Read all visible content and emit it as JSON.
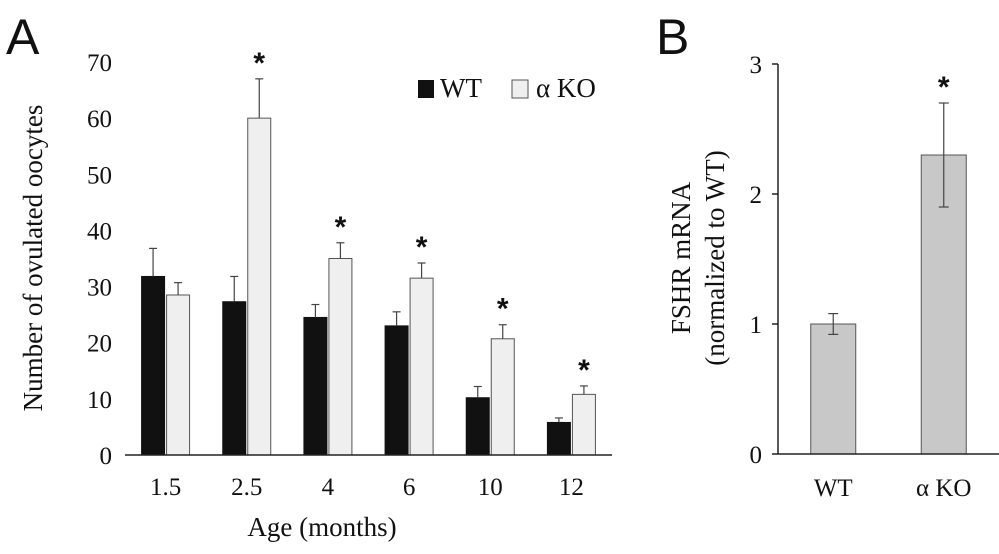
{
  "panels": {
    "a_label": "A",
    "b_label": "B"
  },
  "legend": {
    "wt": "WT",
    "ko": "α KO"
  },
  "significance_mark": "*",
  "colors": {
    "wt": "#111111",
    "ko": "#efefef",
    "b_bar": "#c8c8c8",
    "outline": "#555555"
  },
  "chart_data": [
    {
      "type": "bar",
      "categories": [
        "1.5",
        "2.5",
        "4",
        "6",
        "10",
        "12"
      ],
      "series": [
        {
          "name": "WT",
          "values": [
            31.8,
            27.3,
            24.5,
            23.0,
            10.2,
            5.8
          ],
          "errors": [
            5.0,
            4.5,
            2.3,
            2.5,
            2.0,
            0.8
          ]
        },
        {
          "name": "α KO",
          "values": [
            28.5,
            60.0,
            35.0,
            31.5,
            20.7,
            10.8
          ],
          "errors": [
            2.2,
            7.0,
            2.8,
            2.7,
            2.5,
            1.5
          ]
        }
      ],
      "significant": [
        false,
        true,
        true,
        true,
        true,
        true
      ],
      "xlabel": "Age (months)",
      "ylabel": "Number of ovulated oocytes",
      "ylim": [
        0,
        70
      ],
      "yticks": [
        "0",
        "10",
        "20",
        "30",
        "40",
        "50",
        "60",
        "70"
      ],
      "legend_position": "top-right"
    },
    {
      "type": "bar",
      "categories": [
        "WT",
        "α KO"
      ],
      "values": [
        1.0,
        2.3
      ],
      "errors": [
        0.08,
        0.4
      ],
      "significant": [
        false,
        true
      ],
      "ylabel_line1": "FSHR mRNA",
      "ylabel_line2": "(normalized to WT)",
      "ylim": [
        0,
        3
      ],
      "yticks": [
        "0",
        "1",
        "2",
        "3"
      ]
    }
  ]
}
